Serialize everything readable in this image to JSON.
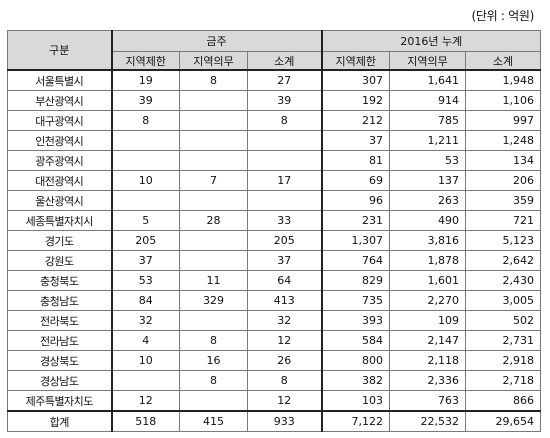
{
  "unit_label": "(단위 : 억원)",
  "header": {
    "category": "구분",
    "group_a": "금주",
    "group_b": "2016년 누계",
    "sub": [
      "지역제한",
      "지역의무",
      "소계",
      "지역제한",
      "지역의무",
      "소계"
    ]
  },
  "rows": [
    {
      "region": "서울특별시",
      "values": [
        "19",
        "8",
        "27",
        "307",
        "1,641",
        "1,948"
      ]
    },
    {
      "region": "부산광역시",
      "values": [
        "39",
        "",
        "39",
        "192",
        "914",
        "1,106"
      ]
    },
    {
      "region": "대구광역시",
      "values": [
        "8",
        "",
        "8",
        "212",
        "785",
        "997"
      ]
    },
    {
      "region": "인천광역시",
      "values": [
        "",
        "",
        "",
        "37",
        "1,211",
        "1,248"
      ]
    },
    {
      "region": "광주광역시",
      "values": [
        "",
        "",
        "",
        "81",
        "53",
        "134"
      ]
    },
    {
      "region": "대전광역시",
      "values": [
        "10",
        "7",
        "17",
        "69",
        "137",
        "206"
      ]
    },
    {
      "region": "울산광역시",
      "values": [
        "",
        "",
        "",
        "96",
        "263",
        "359"
      ]
    },
    {
      "region": "세종특별자치시",
      "values": [
        "5",
        "28",
        "33",
        "231",
        "490",
        "721"
      ]
    },
    {
      "region": "경기도",
      "values": [
        "205",
        "",
        "205",
        "1,307",
        "3,816",
        "5,123"
      ]
    },
    {
      "region": "강원도",
      "values": [
        "37",
        "",
        "37",
        "764",
        "1,878",
        "2,642"
      ]
    },
    {
      "region": "충청북도",
      "values": [
        "53",
        "11",
        "64",
        "829",
        "1,601",
        "2,430"
      ]
    },
    {
      "region": "충청남도",
      "values": [
        "84",
        "329",
        "413",
        "735",
        "2,270",
        "3,005"
      ]
    },
    {
      "region": "전라북도",
      "values": [
        "32",
        "",
        "32",
        "393",
        "109",
        "502"
      ]
    },
    {
      "region": "전라남도",
      "values": [
        "4",
        "8",
        "12",
        "584",
        "2,147",
        "2,731"
      ]
    },
    {
      "region": "경상북도",
      "values": [
        "10",
        "16",
        "26",
        "800",
        "2,118",
        "2,918"
      ]
    },
    {
      "region": "경상남도",
      "values": [
        "",
        "8",
        "8",
        "382",
        "2,336",
        "2,718"
      ]
    },
    {
      "region": "제주특별자치도",
      "values": [
        "12",
        "",
        "12",
        "103",
        "763",
        "866"
      ]
    }
  ],
  "total": {
    "region": "합계",
    "values": [
      "518",
      "415",
      "933",
      "7,122",
      "22,532",
      "29,654"
    ]
  }
}
